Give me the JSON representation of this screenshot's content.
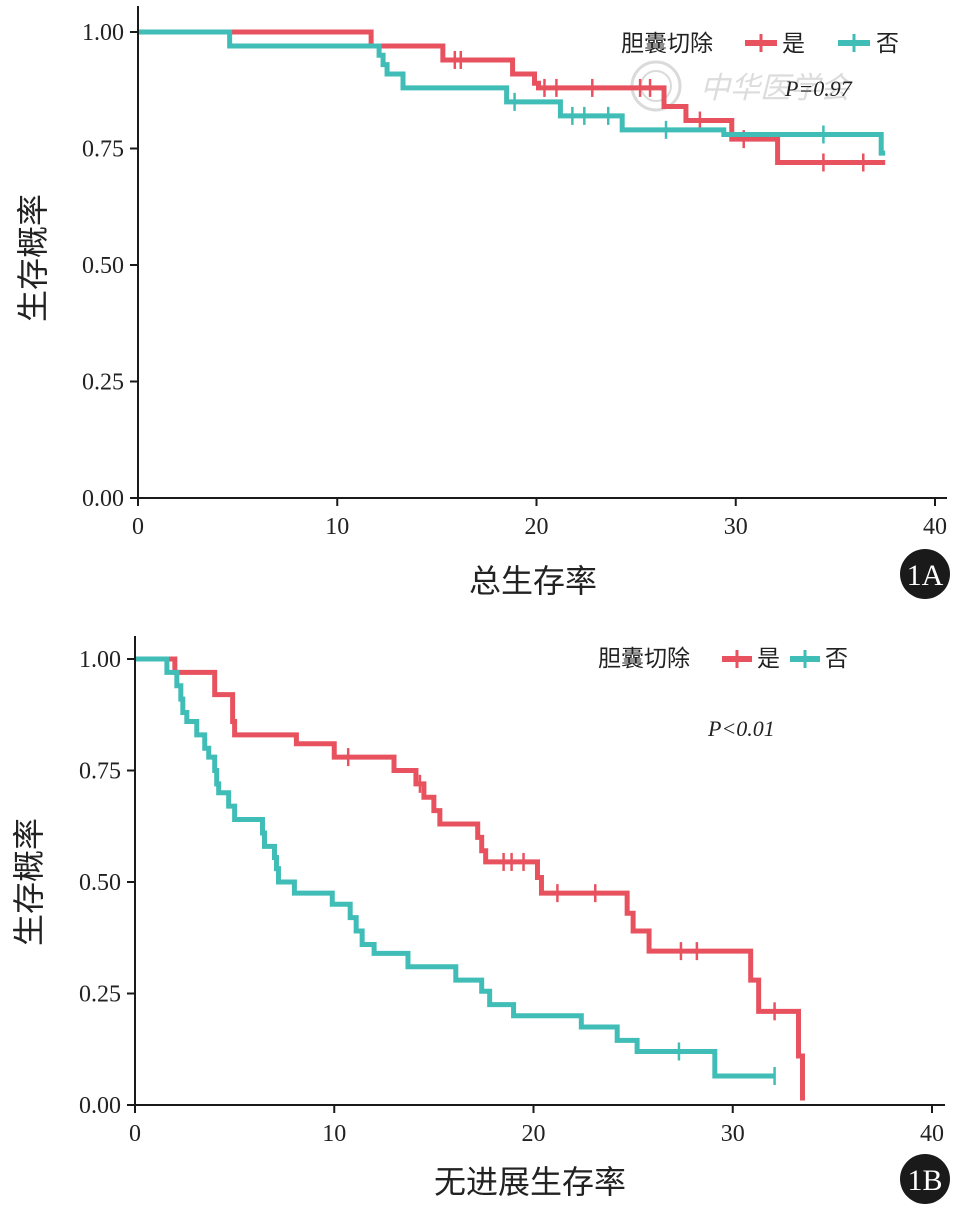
{
  "colors": {
    "yes": "#e8525f",
    "no": "#3fbdb6",
    "axis": "#1a1a1a",
    "badge": "#1a1a1a"
  },
  "chart_data": [
    {
      "id": "1A",
      "type": "line",
      "subtype": "kaplan-meier",
      "title": "",
      "xlabel": "总生存率",
      "ylabel": "生存概率",
      "xlim": [
        0,
        40
      ],
      "ylim": [
        0,
        1
      ],
      "x_ticks": [
        "0",
        "10",
        "20",
        "30",
        "40"
      ],
      "y_ticks": [
        "0.00",
        "0.25",
        "0.50",
        "0.75",
        "1.00"
      ],
      "legend_title": "胆囊切除",
      "legend_position": "top-right",
      "pvalue": "P=0.97",
      "badge": "1A",
      "watermark": "中华医学会",
      "series": [
        {
          "name": "是",
          "color_key": "yes",
          "steps": [
            [
              0,
              1.0
            ],
            [
              11.7,
              0.97
            ],
            [
              15.3,
              0.94
            ],
            [
              18.8,
              0.91
            ],
            [
              19.9,
              0.89
            ],
            [
              20.1,
              0.88
            ],
            [
              26.4,
              0.84
            ],
            [
              27.5,
              0.81
            ],
            [
              29.8,
              0.77
            ],
            [
              32.1,
              0.72
            ],
            [
              37.5,
              0.72
            ]
          ],
          "censors": [
            [
              15.9,
              0.94
            ],
            [
              16.2,
              0.94
            ],
            [
              20.4,
              0.88
            ],
            [
              21.0,
              0.88
            ],
            [
              22.8,
              0.88
            ],
            [
              25.2,
              0.88
            ],
            [
              25.7,
              0.88
            ],
            [
              28.2,
              0.81
            ],
            [
              30.4,
              0.77
            ],
            [
              34.4,
              0.72
            ],
            [
              36.4,
              0.72
            ]
          ]
        },
        {
          "name": "否",
          "color_key": "no",
          "steps": [
            [
              0,
              1.0
            ],
            [
              4.6,
              0.97
            ],
            [
              12.1,
              0.95
            ],
            [
              12.3,
              0.93
            ],
            [
              12.5,
              0.91
            ],
            [
              13.3,
              0.88
            ],
            [
              18.5,
              0.85
            ],
            [
              21.2,
              0.82
            ],
            [
              24.3,
              0.79
            ],
            [
              29.4,
              0.78
            ],
            [
              37.3,
              0.74
            ],
            [
              37.5,
              0.74
            ]
          ],
          "censors": [
            [
              18.9,
              0.85
            ],
            [
              21.8,
              0.82
            ],
            [
              22.4,
              0.82
            ],
            [
              23.6,
              0.82
            ],
            [
              26.5,
              0.79
            ],
            [
              34.4,
              0.78
            ]
          ]
        }
      ]
    },
    {
      "id": "1B",
      "type": "line",
      "subtype": "kaplan-meier",
      "title": "",
      "xlabel": "无进展生存率",
      "ylabel": "生存概率",
      "xlim": [
        0,
        40
      ],
      "ylim": [
        0,
        1
      ],
      "x_ticks": [
        "0",
        "10",
        "20",
        "30",
        "40"
      ],
      "y_ticks": [
        "0.00",
        "0.25",
        "0.50",
        "0.75",
        "1.00"
      ],
      "legend_title": "胆囊切除",
      "legend_position": "top-right",
      "pvalue": "P<0.01",
      "badge": "1B",
      "series": [
        {
          "name": "是",
          "color_key": "yes",
          "steps": [
            [
              0,
              1.0
            ],
            [
              2.0,
              0.97
            ],
            [
              4.0,
              0.92
            ],
            [
              4.9,
              0.86
            ],
            [
              5.0,
              0.83
            ],
            [
              8.1,
              0.81
            ],
            [
              10.0,
              0.78
            ],
            [
              13.0,
              0.75
            ],
            [
              14.1,
              0.72
            ],
            [
              14.5,
              0.69
            ],
            [
              15.0,
              0.66
            ],
            [
              15.3,
              0.63
            ],
            [
              17.2,
              0.6
            ],
            [
              17.4,
              0.57
            ],
            [
              17.6,
              0.545
            ],
            [
              20.2,
              0.51
            ],
            [
              20.4,
              0.475
            ],
            [
              24.7,
              0.43
            ],
            [
              25.0,
              0.39
            ],
            [
              25.8,
              0.345
            ],
            [
              30.9,
              0.28
            ],
            [
              31.3,
              0.21
            ],
            [
              33.3,
              0.11
            ],
            [
              33.5,
              0.01
            ]
          ],
          "censors": [
            [
              10.7,
              0.78
            ],
            [
              14.3,
              0.72
            ],
            [
              18.5,
              0.545
            ],
            [
              18.9,
              0.545
            ],
            [
              19.5,
              0.545
            ],
            [
              21.2,
              0.475
            ],
            [
              23.1,
              0.475
            ],
            [
              27.4,
              0.345
            ],
            [
              28.2,
              0.345
            ],
            [
              32.1,
              0.21
            ]
          ]
        },
        {
          "name": "否",
          "color_key": "no",
          "steps": [
            [
              0,
              1.0
            ],
            [
              1.6,
              0.97
            ],
            [
              2.1,
              0.94
            ],
            [
              2.3,
              0.91
            ],
            [
              2.4,
              0.88
            ],
            [
              2.6,
              0.86
            ],
            [
              3.1,
              0.83
            ],
            [
              3.5,
              0.8
            ],
            [
              3.7,
              0.78
            ],
            [
              4.0,
              0.75
            ],
            [
              4.1,
              0.72
            ],
            [
              4.2,
              0.7
            ],
            [
              4.7,
              0.67
            ],
            [
              5.0,
              0.64
            ],
            [
              6.4,
              0.61
            ],
            [
              6.5,
              0.58
            ],
            [
              7.0,
              0.555
            ],
            [
              7.1,
              0.53
            ],
            [
              7.2,
              0.5
            ],
            [
              8.0,
              0.475
            ],
            [
              9.9,
              0.45
            ],
            [
              10.8,
              0.42
            ],
            [
              11.1,
              0.39
            ],
            [
              11.4,
              0.36
            ],
            [
              12.0,
              0.34
            ],
            [
              13.7,
              0.31
            ],
            [
              16.1,
              0.28
            ],
            [
              17.4,
              0.255
            ],
            [
              17.8,
              0.225
            ],
            [
              19.0,
              0.2
            ],
            [
              22.4,
              0.175
            ],
            [
              24.2,
              0.145
            ],
            [
              25.2,
              0.12
            ],
            [
              29.1,
              0.065
            ],
            [
              32.1,
              0.065
            ]
          ],
          "censors": [
            [
              27.3,
              0.12
            ],
            [
              32.1,
              0.065
            ]
          ]
        }
      ]
    }
  ]
}
